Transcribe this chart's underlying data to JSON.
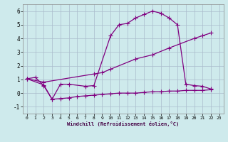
{
  "xlabel": "Windchill (Refroidissement éolien,°C)",
  "bg_color": "#ceeaec",
  "line_color": "#800080",
  "grid_color": "#aabbcc",
  "xlim": [
    -0.5,
    23.5
  ],
  "ylim": [
    -1.5,
    6.5
  ],
  "xticks": [
    0,
    1,
    2,
    3,
    4,
    5,
    6,
    7,
    8,
    9,
    10,
    11,
    12,
    13,
    14,
    15,
    16,
    17,
    18,
    19,
    20,
    21,
    22,
    23
  ],
  "yticks": [
    -1,
    0,
    1,
    2,
    3,
    4,
    5,
    6
  ],
  "series1_x": [
    0,
    1,
    2,
    3,
    4,
    5,
    7,
    8,
    10,
    11,
    12,
    13,
    14,
    15,
    16,
    17,
    18,
    19,
    20,
    21,
    22
  ],
  "series1_y": [
    1.05,
    1.15,
    0.55,
    -0.45,
    0.65,
    0.65,
    0.5,
    0.55,
    4.2,
    5.0,
    5.1,
    5.5,
    5.75,
    6.0,
    5.85,
    5.5,
    5.0,
    0.65,
    0.55,
    0.5,
    0.3
  ],
  "series2_x": [
    0,
    2,
    8,
    9,
    10,
    13,
    15,
    17,
    20,
    21,
    22
  ],
  "series2_y": [
    1.05,
    0.8,
    1.4,
    1.5,
    1.75,
    2.5,
    2.8,
    3.3,
    4.0,
    4.2,
    4.4
  ],
  "series3_x": [
    0,
    2,
    3,
    4,
    5,
    6,
    7,
    8,
    9,
    10,
    11,
    12,
    13,
    14,
    15,
    16,
    17,
    18,
    19,
    20,
    21,
    22
  ],
  "series3_y": [
    1.05,
    0.6,
    -0.45,
    -0.4,
    -0.35,
    -0.25,
    -0.2,
    -0.15,
    -0.1,
    -0.05,
    -0.0,
    0.0,
    0.0,
    0.05,
    0.1,
    0.1,
    0.15,
    0.15,
    0.2,
    0.2,
    0.2,
    0.25
  ],
  "marker": "+",
  "markersize": 4,
  "linewidth": 0.9
}
